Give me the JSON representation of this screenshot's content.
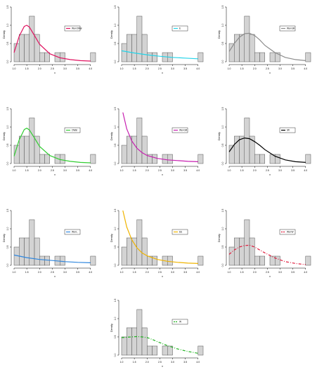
{
  "histogram": {
    "bins": [
      1.0,
      1.2,
      1.4,
      1.6,
      1.8,
      2.0,
      2.2,
      2.4,
      2.6,
      2.8,
      3.0,
      3.2,
      3.4,
      3.6,
      3.8,
      4.0,
      4.2
    ],
    "density": [
      0.5,
      0.75,
      0.75,
      1.25,
      0.75,
      0.25,
      0.25,
      0,
      0.25,
      0.25,
      0,
      0,
      0,
      0,
      0,
      0.25
    ]
  },
  "axes": {
    "xticks": [
      "1.0",
      "1.5",
      "2.0",
      "2.5",
      "3.0",
      "3.5",
      "4.0"
    ],
    "yticks": [
      "0.0",
      "0.5",
      "1.0",
      "1.5"
    ],
    "xlabel": "x",
    "ylabel": "Density"
  },
  "chart_data": [
    {
      "type": "bar",
      "legend": "Wei-OWal",
      "color": "#e0115f",
      "dash": "",
      "xlim": [
        1.0,
        4.2
      ],
      "ylim": [
        0,
        1.5
      ],
      "curve": {
        "x": [
          1.0,
          1.2,
          1.4,
          1.5,
          1.6,
          1.8,
          2.0,
          2.4,
          2.8,
          3.2,
          3.6,
          4.0
        ],
        "y": [
          0.25,
          0.7,
          0.97,
          1.0,
          0.95,
          0.72,
          0.48,
          0.22,
          0.11,
          0.06,
          0.03,
          0.02
        ]
      }
    },
    {
      "type": "bar",
      "legend": "E",
      "color": "#22d3e8",
      "dash": "",
      "xlim": [
        1.0,
        4.2
      ],
      "ylim": [
        0,
        1.5
      ],
      "curve": {
        "x": [
          1.0,
          1.5,
          2.0,
          2.5,
          3.0,
          3.5,
          4.0
        ],
        "y": [
          0.3,
          0.24,
          0.19,
          0.15,
          0.12,
          0.1,
          0.08
        ]
      }
    },
    {
      "type": "bar",
      "legend": "Wei-Gill",
      "color": "#8c8c8c",
      "dash": "",
      "xlim": [
        1.0,
        4.2
      ],
      "ylim": [
        0,
        1.5
      ],
      "curve": {
        "x": [
          1.0,
          1.2,
          1.4,
          1.6,
          1.8,
          2.0,
          2.2,
          2.4,
          2.8,
          3.2,
          3.6,
          4.0
        ],
        "y": [
          0.28,
          0.5,
          0.67,
          0.77,
          0.78,
          0.72,
          0.6,
          0.45,
          0.25,
          0.12,
          0.06,
          0.03
        ]
      }
    },
    {
      "type": "bar",
      "legend": "OWal",
      "color": "#32cd32",
      "dash": "",
      "xlim": [
        1.0,
        4.2
      ],
      "ylim": [
        0,
        1.5
      ],
      "curve": {
        "x": [
          1.0,
          1.2,
          1.4,
          1.5,
          1.6,
          1.8,
          2.0,
          2.4,
          2.8,
          3.2,
          3.6,
          4.0
        ],
        "y": [
          0.2,
          0.65,
          0.93,
          0.97,
          0.92,
          0.7,
          0.47,
          0.22,
          0.11,
          0.06,
          0.03,
          0.02
        ]
      }
    },
    {
      "type": "bar",
      "legend": "Wei-Gill",
      "color": "#c71fb0",
      "dash": "",
      "xlim": [
        1.0,
        4.2
      ],
      "ylim": [
        0,
        1.5
      ],
      "curve": {
        "x": [
          1.05,
          1.2,
          1.4,
          1.6,
          1.8,
          2.0,
          2.4,
          2.8,
          3.2,
          3.6,
          4.0
        ],
        "y": [
          1.4,
          0.95,
          0.62,
          0.42,
          0.3,
          0.22,
          0.14,
          0.1,
          0.08,
          0.06,
          0.05
        ]
      }
    },
    {
      "type": "bar",
      "legend": "IW",
      "color": "#000000",
      "dash": "",
      "xlim": [
        1.0,
        4.2
      ],
      "ylim": [
        0,
        1.5
      ],
      "curve": {
        "x": [
          1.0,
          1.2,
          1.4,
          1.6,
          1.8,
          2.0,
          2.2,
          2.4,
          2.8,
          3.2,
          3.6,
          4.0
        ],
        "y": [
          0.32,
          0.52,
          0.65,
          0.7,
          0.68,
          0.6,
          0.5,
          0.38,
          0.2,
          0.1,
          0.05,
          0.03
        ]
      }
    },
    {
      "type": "bar",
      "legend": "Wei-L",
      "color": "#2e86de",
      "dash": "",
      "xlim": [
        1.0,
        4.2
      ],
      "ylim": [
        0,
        1.5
      ],
      "curve": {
        "x": [
          1.0,
          1.5,
          2.0,
          2.5,
          3.0,
          3.5,
          4.0
        ],
        "y": [
          0.28,
          0.21,
          0.16,
          0.13,
          0.1,
          0.08,
          0.07
        ]
      }
    },
    {
      "type": "bar",
      "legend": "EE",
      "color": "#f0b400",
      "dash": "",
      "xlim": [
        1.0,
        4.2
      ],
      "ylim": [
        0,
        1.5
      ],
      "curve": {
        "x": [
          1.05,
          1.2,
          1.4,
          1.6,
          1.8,
          2.0,
          2.4,
          2.8,
          3.2,
          3.6,
          4.0
        ],
        "y": [
          1.5,
          1.05,
          0.7,
          0.48,
          0.34,
          0.26,
          0.16,
          0.11,
          0.08,
          0.06,
          0.05
        ]
      }
    },
    {
      "type": "bar",
      "legend": "Wei-W",
      "color": "#e01b3c",
      "dash": "4,2,1,2",
      "xlim": [
        1.0,
        4.2
      ],
      "ylim": [
        0,
        1.5
      ],
      "curve": {
        "x": [
          1.0,
          1.2,
          1.4,
          1.6,
          1.8,
          2.0,
          2.2,
          2.4,
          2.8,
          3.2,
          3.6,
          4.0
        ],
        "y": [
          0.3,
          0.42,
          0.5,
          0.54,
          0.55,
          0.5,
          0.42,
          0.34,
          0.2,
          0.1,
          0.05,
          0.02
        ]
      }
    },
    {
      "type": "bar",
      "legend": "W",
      "color": "#22b422",
      "dash": "4,2,1,2",
      "xlim": [
        1.0,
        4.2
      ],
      "ylim": [
        0,
        1.5
      ],
      "curve": {
        "x": [
          1.0,
          1.2,
          1.4,
          1.6,
          1.8,
          2.0,
          2.2,
          2.4,
          2.8,
          3.2,
          3.6,
          4.0
        ],
        "y": [
          0.48,
          0.49,
          0.5,
          0.51,
          0.5,
          0.48,
          0.43,
          0.37,
          0.26,
          0.17,
          0.1,
          0.05
        ]
      }
    }
  ]
}
